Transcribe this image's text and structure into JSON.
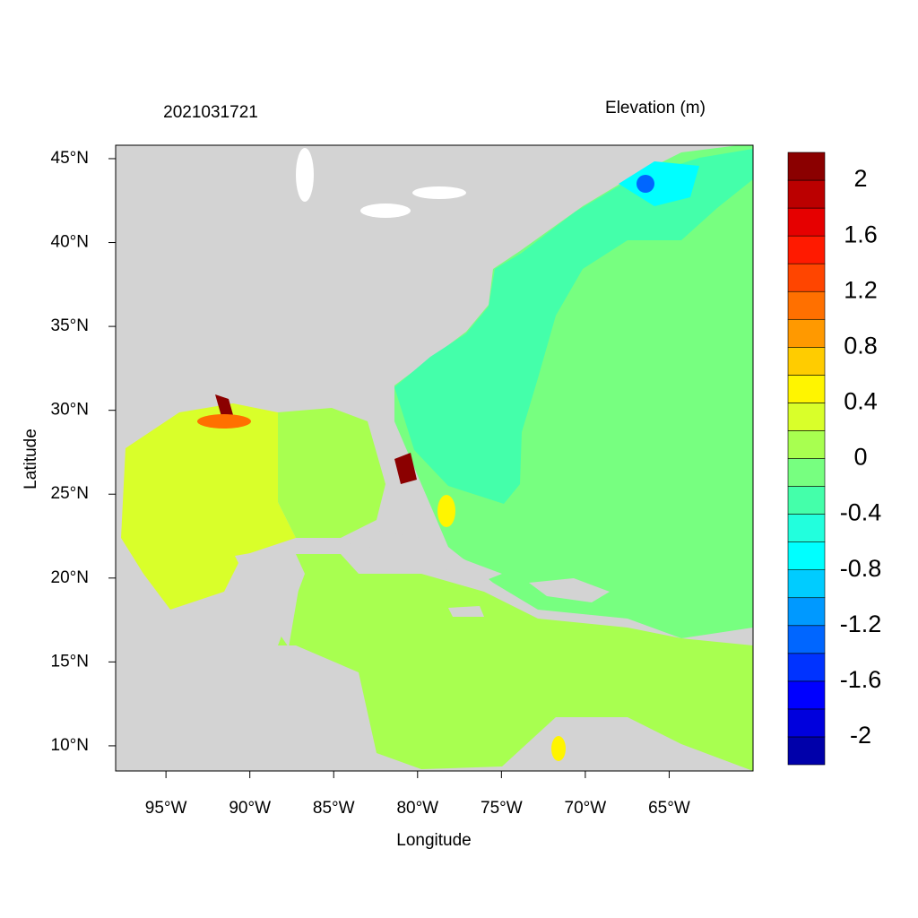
{
  "chart_data": {
    "type": "contour",
    "title": "2021031721",
    "colorbar_title": "Elevation (m)",
    "xlabel": "Longitude",
    "ylabel": "Latitude",
    "xlim": [
      -98,
      -60
    ],
    "ylim": [
      8.5,
      45.8
    ],
    "xticks": [
      {
        "value": -95,
        "label": "95°W"
      },
      {
        "value": -90,
        "label": "90°W"
      },
      {
        "value": -85,
        "label": "85°W"
      },
      {
        "value": -80,
        "label": "80°W"
      },
      {
        "value": -75,
        "label": "75°W"
      },
      {
        "value": -70,
        "label": "70°W"
      },
      {
        "value": -65,
        "label": "65°W"
      }
    ],
    "yticks": [
      {
        "value": 10,
        "label": "10°N"
      },
      {
        "value": 15,
        "label": "15°N"
      },
      {
        "value": 20,
        "label": "20°N"
      },
      {
        "value": 25,
        "label": "25°N"
      },
      {
        "value": 30,
        "label": "30°N"
      },
      {
        "value": 35,
        "label": "35°N"
      },
      {
        "value": 40,
        "label": "40°N"
      },
      {
        "value": 45,
        "label": "45°N"
      }
    ],
    "colorbar": {
      "levels": [
        -2.2,
        -2,
        -1.8,
        -1.6,
        -1.4,
        -1.2,
        -1,
        -0.8,
        -0.6,
        -0.4,
        -0.2,
        0,
        0.2,
        0.4,
        0.6,
        0.8,
        1,
        1.2,
        1.4,
        1.6,
        1.8,
        2,
        2.2
      ],
      "colors": [
        "#0000aa",
        "#0000dd",
        "#0000ff",
        "#0033ff",
        "#0066ff",
        "#0099ff",
        "#00ccff",
        "#00ffff",
        "#22ffdd",
        "#44ffaa",
        "#77ff80",
        "#a8ff50",
        "#d9ff2a",
        "#fff500",
        "#ffcc00",
        "#ff9900",
        "#ff7000",
        "#ff4500",
        "#ff1a00",
        "#e60000",
        "#bb0000",
        "#8b0000"
      ],
      "ticks": [
        -2,
        -1.6,
        -1.2,
        -0.8,
        -0.4,
        0,
        0.4,
        0.8,
        1.2,
        1.6,
        2
      ]
    }
  }
}
